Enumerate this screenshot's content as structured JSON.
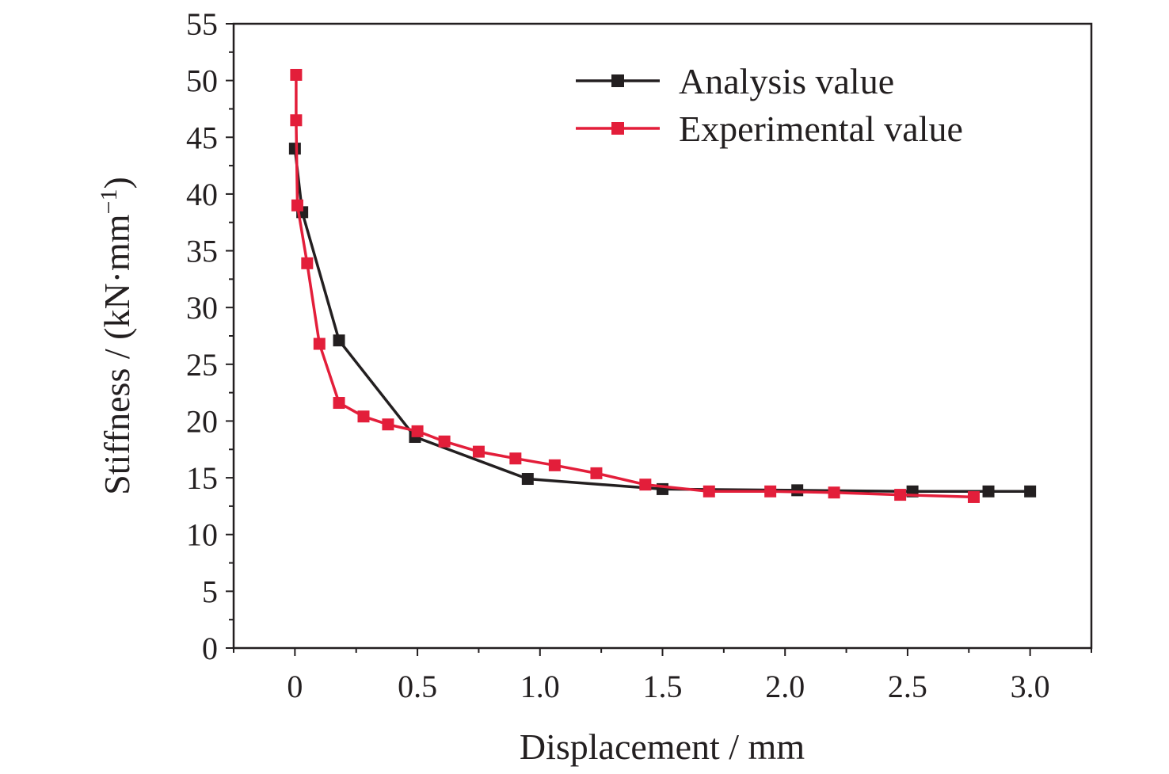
{
  "chart_data": {
    "type": "line",
    "xlabel": "Displacement / mm",
    "ylabel": {
      "main": "Stiffness / (kN·mm",
      "superscript": "−1",
      "close": ")"
    },
    "xlim": [
      -0.25,
      3.25
    ],
    "ylim": [
      0,
      55
    ],
    "x_ticks": [
      "0",
      "0.5",
      "1.0",
      "1.5",
      "2.0",
      "2.5",
      "3.0"
    ],
    "x_tick_values": [
      0,
      0.5,
      1.0,
      1.5,
      2.0,
      2.5,
      3.0
    ],
    "y_ticks": [
      "0",
      "5",
      "10",
      "15",
      "20",
      "25",
      "30",
      "35",
      "40",
      "45",
      "50",
      "55"
    ],
    "y_tick_values": [
      0,
      5,
      10,
      15,
      20,
      25,
      30,
      35,
      40,
      45,
      50,
      55
    ],
    "grid": false,
    "legend_position": "top-right",
    "series": [
      {
        "name": "Analysis value",
        "color": "#231f20",
        "marker": "square",
        "line_style": "solid",
        "points": [
          [
            0.0,
            44.0
          ],
          [
            0.03,
            38.4
          ],
          [
            0.18,
            27.1
          ],
          [
            0.49,
            18.6
          ],
          [
            0.95,
            14.9
          ],
          [
            1.5,
            14.0
          ],
          [
            2.05,
            13.9
          ],
          [
            2.52,
            13.8
          ],
          [
            2.83,
            13.8
          ],
          [
            3.0,
            13.8
          ]
        ]
      },
      {
        "name": "Experimental value",
        "color": "#e31e3a",
        "marker": "square",
        "line_style": "solid",
        "points": [
          [
            0.005,
            50.5
          ],
          [
            0.005,
            46.5
          ],
          [
            0.01,
            39.0
          ],
          [
            0.05,
            33.9
          ],
          [
            0.1,
            26.8
          ],
          [
            0.18,
            21.6
          ],
          [
            0.28,
            20.4
          ],
          [
            0.38,
            19.7
          ],
          [
            0.5,
            19.1
          ],
          [
            0.61,
            18.2
          ],
          [
            0.75,
            17.3
          ],
          [
            0.9,
            16.7
          ],
          [
            1.06,
            16.1
          ],
          [
            1.23,
            15.4
          ],
          [
            1.43,
            14.4
          ],
          [
            1.69,
            13.8
          ],
          [
            1.94,
            13.8
          ],
          [
            2.2,
            13.7
          ],
          [
            2.47,
            13.5
          ],
          [
            2.77,
            13.3
          ]
        ]
      }
    ]
  }
}
